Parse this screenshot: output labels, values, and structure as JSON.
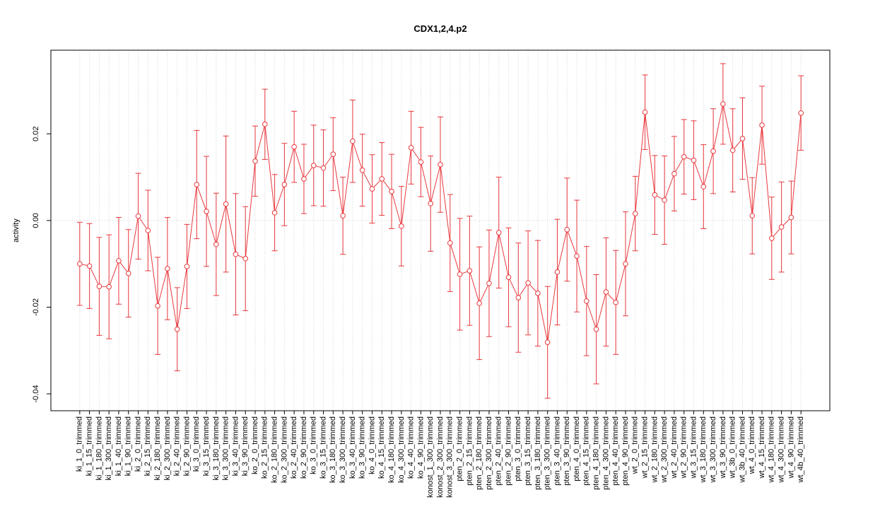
{
  "chart_data": {
    "type": "line",
    "title": "CDX1,2,4.p2",
    "ylabel": "activity",
    "categories": [
      "ki_1_0_trimmed",
      "ki_1_15_trimmed",
      "ki_1_180_trimmed",
      "ki_1_300_trimmed",
      "ki_1_40_trimmed",
      "ki_1_90_trimmed",
      "ki_2_0_trimmed",
      "ki_2_15_trimmed",
      "ki_2_180_trimmed",
      "ki_2_300_trimmed",
      "ki_2_40_trimmed",
      "ki_2_90_trimmed",
      "ki_3_0_trimmed",
      "ki_3_15_trimmed",
      "ki_3_180_trimmed",
      "ki_3_300_trimmed",
      "ki_3_40_trimmed",
      "ki_3_90_trimmed",
      "ko_2_0_trimmed",
      "ko_2_15_trimmed",
      "ko_2_180_trimmed",
      "ko_2_300_trimmed",
      "ko_2_40_trimmed",
      "ko_2_90_trimmed",
      "ko_3_0_trimmed",
      "ko_3_15_trimmed",
      "ko_3_180_trimmed",
      "ko_3_300_trimmed",
      "ko_3_40_trimmed",
      "ko_3_90_trimmed",
      "ko_4_0_trimmed",
      "ko_4_15_trimmed",
      "ko_4_180_trimmed",
      "ko_4_300_trimmed",
      "ko_4_40_trimmed",
      "ko_4_90_trimmed",
      "konost_1_300_trimmed",
      "konost_2_300_trimmed",
      "konost_3_300_trimmed",
      "pten_2_0_trimmed",
      "pten_2_15_trimmed",
      "pten_2_180_trimmed",
      "pten_2_300_trimmed",
      "pten_2_40_trimmed",
      "pten_2_90_trimmed",
      "pten_3_0_trimmed",
      "pten_3_15_trimmed",
      "pten_3_180_trimmed",
      "pten_3_300_trimmed",
      "pten_3_40_trimmed",
      "pten_3_90_trimmed",
      "pten_4_0_trimmed",
      "pten_4_15_trimmed",
      "pten_4_180_trimmed",
      "pten_4_300_trimmed",
      "pten_4_40_trimmed",
      "pten_4_90_trimmed",
      "wt_2_0_trimmed",
      "wt_2_15_trimmed",
      "wt_2_180_trimmed",
      "wt_2_300_trimmed",
      "wt_2_40_trimmed",
      "wt_2_90_trimmed",
      "wt_3_15_trimmed",
      "wt_3_180_trimmed",
      "wt_3_300_trimmed",
      "wt_3_90_trimmed",
      "wt_3b_0_trimmed",
      "wt_3b_40_trimmed",
      "wt_4_0_trimmed",
      "wt_4_15_trimmed",
      "wt_4_180_trimmed",
      "wt_4_300_trimmed",
      "wt_4_90_trimmed",
      "wt_4b_40_trimmed"
    ],
    "series": [
      {
        "color": "#e8383d",
        "values": [
          -0.01,
          -0.0105,
          -0.0152,
          -0.0153,
          -0.0093,
          -0.0122,
          0.001,
          -0.0023,
          -0.0197,
          -0.0111,
          -0.0251,
          -0.0106,
          0.0083,
          0.0021,
          -0.0055,
          0.0038,
          -0.0078,
          -0.0088,
          0.0137,
          0.0222,
          0.0018,
          0.0083,
          0.017,
          0.0096,
          0.0127,
          0.0121,
          0.0153,
          0.0011,
          0.0183,
          0.0116,
          0.0073,
          0.0096,
          0.0067,
          -0.0013,
          0.0168,
          0.0135,
          0.0039,
          0.0129,
          -0.0052,
          -0.0124,
          -0.0116,
          -0.0191,
          -0.0145,
          -0.0028,
          -0.0131,
          -0.0178,
          -0.0144,
          -0.0168,
          -0.0281,
          -0.0119,
          -0.0021,
          -0.0082,
          -0.0186,
          -0.0251,
          -0.0165,
          -0.0189,
          -0.01,
          0.0016,
          0.025,
          0.0059,
          0.0047,
          0.0108,
          0.0147,
          0.0139,
          0.0078,
          0.016,
          0.0269,
          0.0162,
          0.0189,
          0.0011,
          0.022,
          -0.0041,
          -0.0015,
          0.0007,
          0.0248
        ],
        "errors": [
          0.0096,
          0.0098,
          0.0113,
          0.012,
          0.01,
          0.0101,
          0.0099,
          0.0093,
          0.0112,
          0.0118,
          0.0096,
          0.0097,
          0.0125,
          0.0127,
          0.0118,
          0.0157,
          0.014,
          0.012,
          0.0081,
          0.0081,
          0.0088,
          0.0095,
          0.0082,
          0.008,
          0.0093,
          0.0088,
          0.0084,
          0.0089,
          0.0095,
          0.0083,
          0.0079,
          0.0084,
          0.0086,
          0.0092,
          0.0084,
          0.008,
          0.011,
          0.011,
          0.0112,
          0.0129,
          0.0126,
          0.013,
          0.0123,
          0.0128,
          0.0114,
          0.0126,
          0.012,
          0.0122,
          0.0129,
          0.0122,
          0.0119,
          0.0129,
          0.0126,
          0.0126,
          0.0125,
          0.012,
          0.012,
          0.0086,
          0.0086,
          0.0091,
          0.0102,
          0.0086,
          0.0086,
          0.0091,
          0.0097,
          0.0098,
          0.0093,
          0.0096,
          0.0094,
          0.0088,
          0.009,
          0.0095,
          0.0104,
          0.0084,
          0.0086
        ]
      }
    ],
    "ylim": [
      -0.0439,
      0.0393
    ],
    "yticks": [
      -0.04,
      -0.02,
      {
        "value": 0,
        "label": "0.00"
      },
      0.02
    ],
    "reference_line": 0,
    "grid": true
  }
}
